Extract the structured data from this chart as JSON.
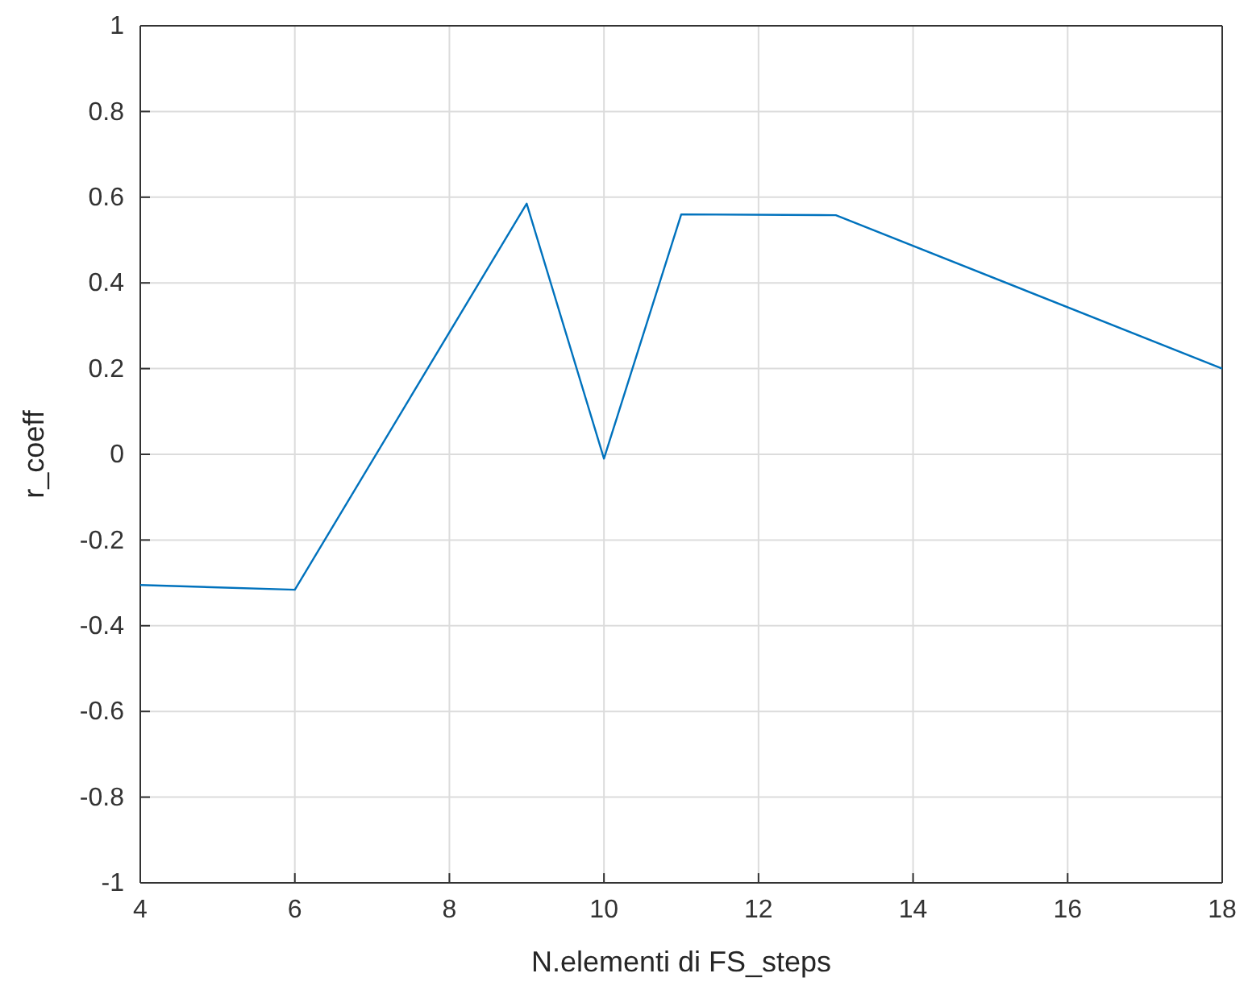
{
  "chart_data": {
    "type": "line",
    "xlabel": "N.elementi di FS_steps",
    "ylabel": "r_coeff",
    "series": [
      {
        "color": "#0072bd",
        "x": [
          4,
          6,
          9,
          10,
          11,
          13,
          18
        ],
        "values": [
          -0.305,
          -0.316,
          0.585,
          -0.01,
          0.56,
          0.558,
          0.2
        ]
      }
    ],
    "xlim": [
      4,
      18
    ],
    "xticks": [
      4,
      6,
      8,
      10,
      12,
      14,
      16,
      18
    ],
    "ylim": [
      -1,
      1
    ],
    "yticks": [
      -1,
      -0.8,
      -0.6,
      -0.4,
      -0.2,
      0,
      0.2,
      0.4,
      0.6,
      0.8,
      1
    ],
    "grid": true,
    "marker": "none",
    "line_style": "solid"
  }
}
